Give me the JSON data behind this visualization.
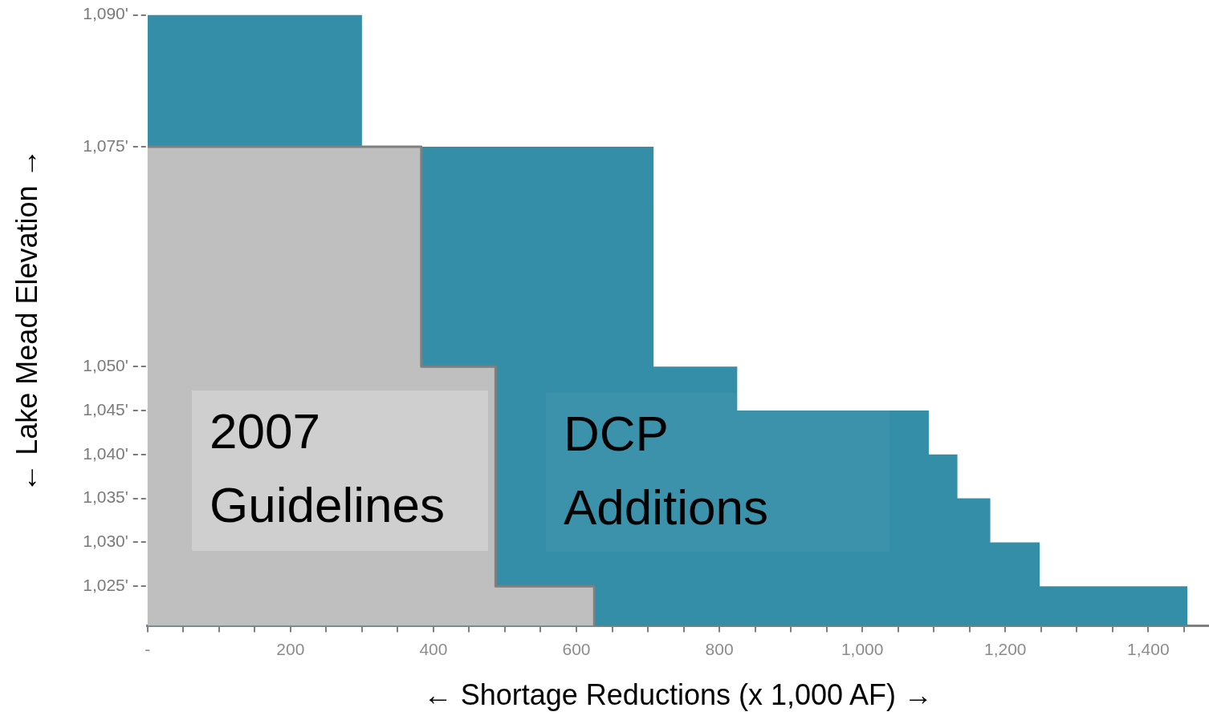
{
  "chart_data": {
    "type": "area",
    "xlabel": "← Shortage Reductions (x 1,000 AF) →",
    "ylabel": "← Lake Mead Elevation →",
    "series": [
      {
        "name": "DCP Additions",
        "color": "#348ea7",
        "x": [
          0,
          300,
          300,
          708,
          708,
          825,
          825,
          1093,
          1093,
          1133,
          1133,
          1179,
          1179,
          1248,
          1248,
          1455,
          1455
        ],
        "values": [
          1090,
          1090,
          1075,
          1075,
          1050,
          1050,
          1045,
          1045,
          1040,
          1040,
          1035,
          1035,
          1030,
          1030,
          1025,
          1025,
          1020.5
        ]
      },
      {
        "name": "2007 Guidelines",
        "color": "#bfbfbf",
        "x": [
          0,
          383,
          383,
          487,
          487,
          625,
          625
        ],
        "values": [
          1075,
          1075,
          1050,
          1050,
          1025,
          1025,
          1020.5
        ]
      }
    ],
    "xlim": [
      0,
      1485
    ],
    "ylim": [
      1020.5,
      1090
    ],
    "xticks": [
      {
        "value": 0,
        "label": "-"
      },
      {
        "value": 50,
        "label": null
      },
      {
        "value": 100,
        "label": null
      },
      {
        "value": 150,
        "label": null
      },
      200,
      {
        "value": 250,
        "label": null
      },
      {
        "value": 300,
        "label": null
      },
      {
        "value": 350,
        "label": null
      },
      400,
      {
        "value": 450,
        "label": null
      },
      {
        "value": 500,
        "label": null
      },
      {
        "value": 550,
        "label": null
      },
      600,
      {
        "value": 650,
        "label": null
      },
      {
        "value": 700,
        "label": null
      },
      {
        "value": 750,
        "label": null
      },
      800,
      {
        "value": 850,
        "label": null
      },
      {
        "value": 900,
        "label": null
      },
      {
        "value": 950,
        "label": null
      },
      {
        "value": 1000,
        "label": "1,000"
      },
      {
        "value": 1050,
        "label": null
      },
      {
        "value": 1100,
        "label": null
      },
      {
        "value": 1150,
        "label": null
      },
      {
        "value": 1200,
        "label": "1,200"
      },
      {
        "value": 1250,
        "label": null
      },
      {
        "value": 1300,
        "label": null
      },
      {
        "value": 1350,
        "label": null
      },
      {
        "value": 1400,
        "label": "1,400"
      },
      {
        "value": 1450,
        "label": null
      }
    ],
    "yticks": [
      {
        "value": 1025,
        "label": "1,025'"
      },
      {
        "value": 1030,
        "label": "1,030'"
      },
      {
        "value": 1035,
        "label": "1,035'"
      },
      {
        "value": 1040,
        "label": "1,040'"
      },
      {
        "value": 1045,
        "label": "1,045'"
      },
      {
        "value": 1050,
        "label": "1,050'"
      },
      {
        "value": 1075,
        "label": "1,075'"
      },
      {
        "value": 1090,
        "label": "1,090'"
      }
    ],
    "grid": false
  }
}
